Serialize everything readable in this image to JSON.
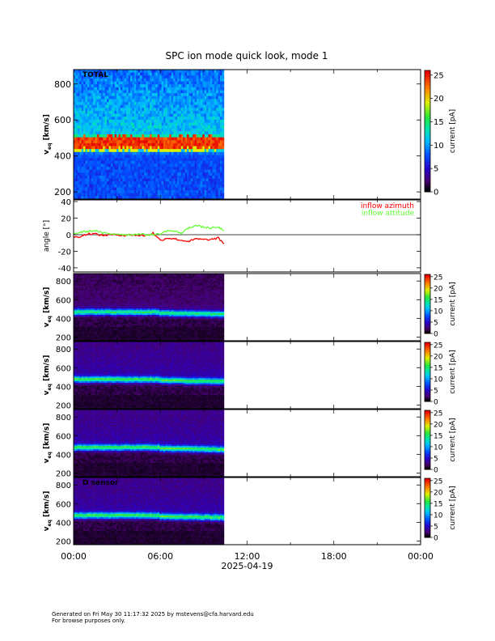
{
  "title": "SPC ion mode quick look, mode 1",
  "footer": {
    "line1": "Generated on Fri May 30 11:17:32 2025 by mstevens@cfa.harvard.edu",
    "line2": "For browse purposes only."
  },
  "chart_data": {
    "type": "heatmap",
    "title": "SPC ion mode quick look, mode 1",
    "x_axis": {
      "label": "2025-04-19",
      "range_hours": [
        0,
        24
      ],
      "tick_labels": [
        "00:00",
        "06:00",
        "12:00",
        "18:00",
        "00:00"
      ],
      "data_end_hour": 10.4
    },
    "panels": [
      {
        "name": "TOTAL",
        "ylabel": "v",
        "ylabel_sub": "eq",
        "ylabel_unit": "[km/s]",
        "yrange": [
          160,
          880
        ],
        "yticks": [
          200,
          400,
          600,
          800
        ],
        "colorbar": {
          "label": "current [pA]",
          "range": [
            0,
            26
          ],
          "ticks": [
            0,
            5,
            10,
            15,
            20,
            25
          ]
        },
        "peak_speed": 475,
        "colors": {
          "background": "#1a5cff",
          "max": "#e80000"
        }
      },
      {
        "name": "angle",
        "ylabel": "angle [°]",
        "yrange": [
          -45,
          42
        ],
        "yticks": [
          -40,
          -20,
          0,
          20,
          40
        ],
        "series": [
          {
            "name": "inflow azimuth",
            "color": "#ff0000",
            "x": [
              0,
              0.5,
              1,
              1.5,
              2,
              2.5,
              3,
              3.5,
              4,
              4.5,
              5,
              5.5,
              6,
              6.5,
              7,
              7.5,
              8,
              8.5,
              9,
              9.5,
              10,
              10.4
            ],
            "y": [
              -3,
              -2,
              1,
              1,
              -1,
              0,
              0,
              -1,
              0,
              -1,
              -1,
              2,
              -7,
              -4,
              -5,
              -7,
              -8,
              -5,
              -6,
              -6,
              -4,
              -11
            ]
          },
          {
            "name": "inflow attitude",
            "color": "#66ff33",
            "x": [
              0,
              0.5,
              1,
              1.5,
              2,
              2.5,
              3,
              3.5,
              4,
              4.5,
              5,
              5.5,
              6,
              6.5,
              7,
              7.5,
              8,
              8.5,
              9,
              9.5,
              10,
              10.4
            ],
            "y": [
              1,
              3,
              4,
              5,
              2,
              1,
              1,
              0,
              0,
              1,
              0,
              0,
              1,
              5,
              4,
              2,
              9,
              11,
              9,
              8,
              9,
              5
            ]
          }
        ]
      },
      {
        "name": "",
        "ylabel": "v",
        "ylabel_sub": "eq",
        "ylabel_unit": "[km/s]",
        "yrange": [
          160,
          880
        ],
        "yticks": [
          200,
          400,
          600,
          800
        ],
        "colorbar": {
          "label": "current [pA]",
          "range": [
            0,
            26
          ],
          "ticks": [
            0,
            5,
            10,
            15,
            20,
            25
          ]
        },
        "peak_speed": 465
      },
      {
        "name": "",
        "ylabel": "v",
        "ylabel_sub": "eq",
        "ylabel_unit": "[km/s]",
        "yrange": [
          160,
          880
        ],
        "yticks": [
          200,
          400,
          600,
          800
        ],
        "colorbar": {
          "label": "current [pA]",
          "range": [
            0,
            26
          ],
          "ticks": [
            0,
            5,
            10,
            15,
            20,
            25
          ]
        },
        "peak_speed": 470
      },
      {
        "name": "",
        "ylabel": "v",
        "ylabel_sub": "eq",
        "ylabel_unit": "[km/s]",
        "yrange": [
          160,
          880
        ],
        "yticks": [
          200,
          400,
          600,
          800
        ],
        "colorbar": {
          "label": "current [pA]",
          "range": [
            0,
            26
          ],
          "ticks": [
            0,
            5,
            10,
            15,
            20,
            25
          ]
        },
        "peak_speed": 470
      },
      {
        "name": "D sensor",
        "ylabel": "v",
        "ylabel_sub": "eq",
        "ylabel_unit": "[km/s]",
        "yrange": [
          160,
          880
        ],
        "yticks": [
          200,
          400,
          600,
          800
        ],
        "colorbar": {
          "label": "current [pA]",
          "range": [
            0,
            26
          ],
          "ticks": [
            0,
            5,
            10,
            15,
            20,
            25
          ]
        },
        "peak_speed": 470
      }
    ]
  }
}
